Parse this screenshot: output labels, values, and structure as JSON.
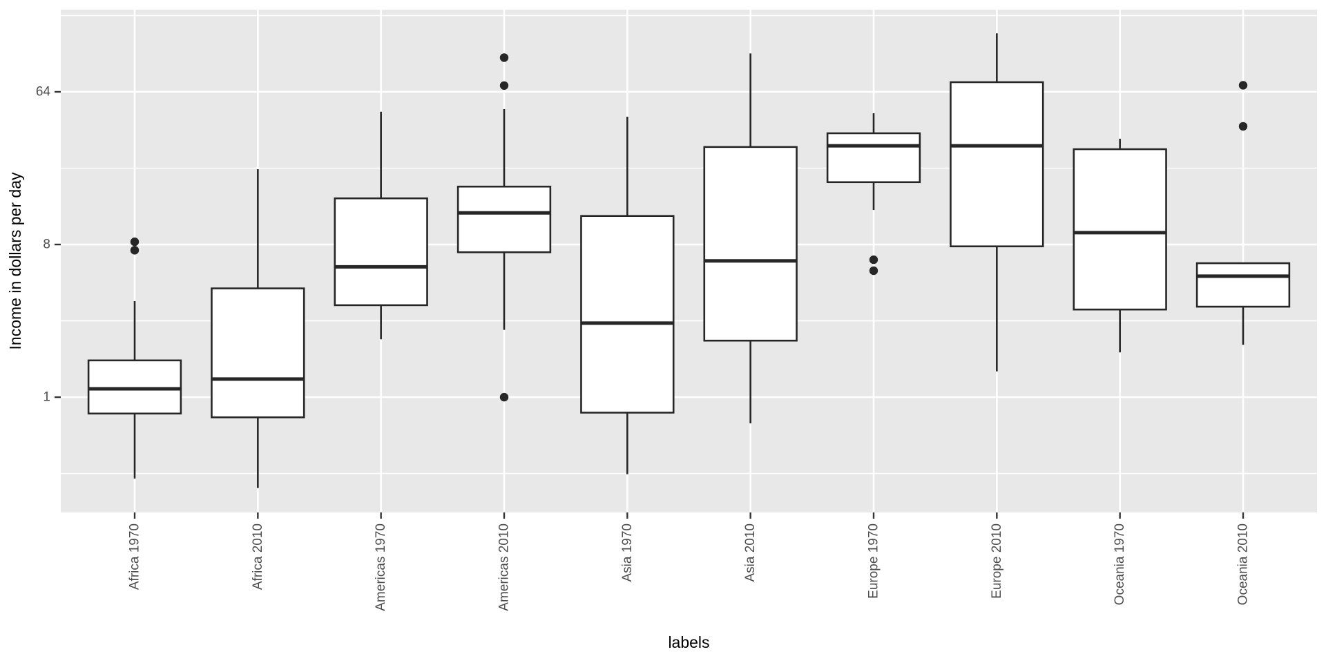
{
  "chart_data": {
    "type": "boxplot",
    "title": "",
    "xlabel": "labels",
    "ylabel": "Income in dollars per day",
    "y_scale": "log2",
    "y_axis": {
      "breaks": [
        1,
        8,
        64
      ],
      "tick_labels": [
        "1",
        "8",
        "64"
      ],
      "minor_breaks": [
        0.3536,
        2.828,
        22.63,
        181
      ],
      "range": [
        0.208,
        196
      ],
      "grid": "on",
      "legend": "none"
    },
    "categories": [
      "Africa 1970",
      "Africa 2010",
      "Americas 1970",
      "Americas 2010",
      "Asia 1970",
      "Asia 2010",
      "Europe 1970",
      "Europe 2010",
      "Oceania 1970",
      "Oceania 2010"
    ],
    "series": [
      {
        "label": "Africa 1970",
        "min": 0.33,
        "q1": 0.8,
        "median": 1.12,
        "q3": 1.65,
        "max": 3.7,
        "outliers": [
          7.4,
          8.3
        ]
      },
      {
        "label": "Africa 2010",
        "min": 0.29,
        "q1": 0.76,
        "median": 1.28,
        "q3": 4.4,
        "max": 22.3,
        "outliers": []
      },
      {
        "label": "Americas 1970",
        "min": 2.2,
        "q1": 3.5,
        "median": 5.9,
        "q3": 15.0,
        "max": 48.8,
        "outliers": []
      },
      {
        "label": "Americas 2010",
        "min": 2.5,
        "q1": 7.2,
        "median": 12.3,
        "q3": 17.6,
        "max": 50.6,
        "outliers": [
          1.0,
          69.7,
          102
        ]
      },
      {
        "label": "Asia 1970",
        "min": 0.35,
        "q1": 0.81,
        "median": 2.74,
        "q3": 11.8,
        "max": 45.6,
        "outliers": []
      },
      {
        "label": "Asia 2010",
        "min": 0.7,
        "q1": 2.16,
        "median": 6.4,
        "q3": 30.2,
        "max": 108,
        "outliers": []
      },
      {
        "label": "Europe 1970",
        "min": 12.8,
        "q1": 18.7,
        "median": 30.7,
        "q3": 36.4,
        "max": 47.8,
        "outliers": [
          5.6,
          6.5
        ]
      },
      {
        "label": "Europe 2010",
        "min": 1.42,
        "q1": 7.8,
        "median": 30.7,
        "q3": 73,
        "max": 142,
        "outliers": []
      },
      {
        "label": "Oceania 1970",
        "min": 1.84,
        "q1": 3.3,
        "median": 9.4,
        "q3": 29.3,
        "max": 33.8,
        "outliers": []
      },
      {
        "label": "Oceania 2010",
        "min": 2.04,
        "q1": 3.43,
        "median": 5.2,
        "q3": 6.2,
        "max": 6.2,
        "outliers": [
          40,
          70
        ]
      }
    ]
  },
  "style": {
    "panel_bg": "#E8E8E8",
    "grid_color": "#FFFFFF",
    "box_fill": "#FFFFFF",
    "box_stroke": "#262626",
    "outlier_color": "#262626",
    "axis_text_color": "#4D4D4D",
    "axis_title_color": "#000000",
    "tick_mark_color": "#333333"
  }
}
